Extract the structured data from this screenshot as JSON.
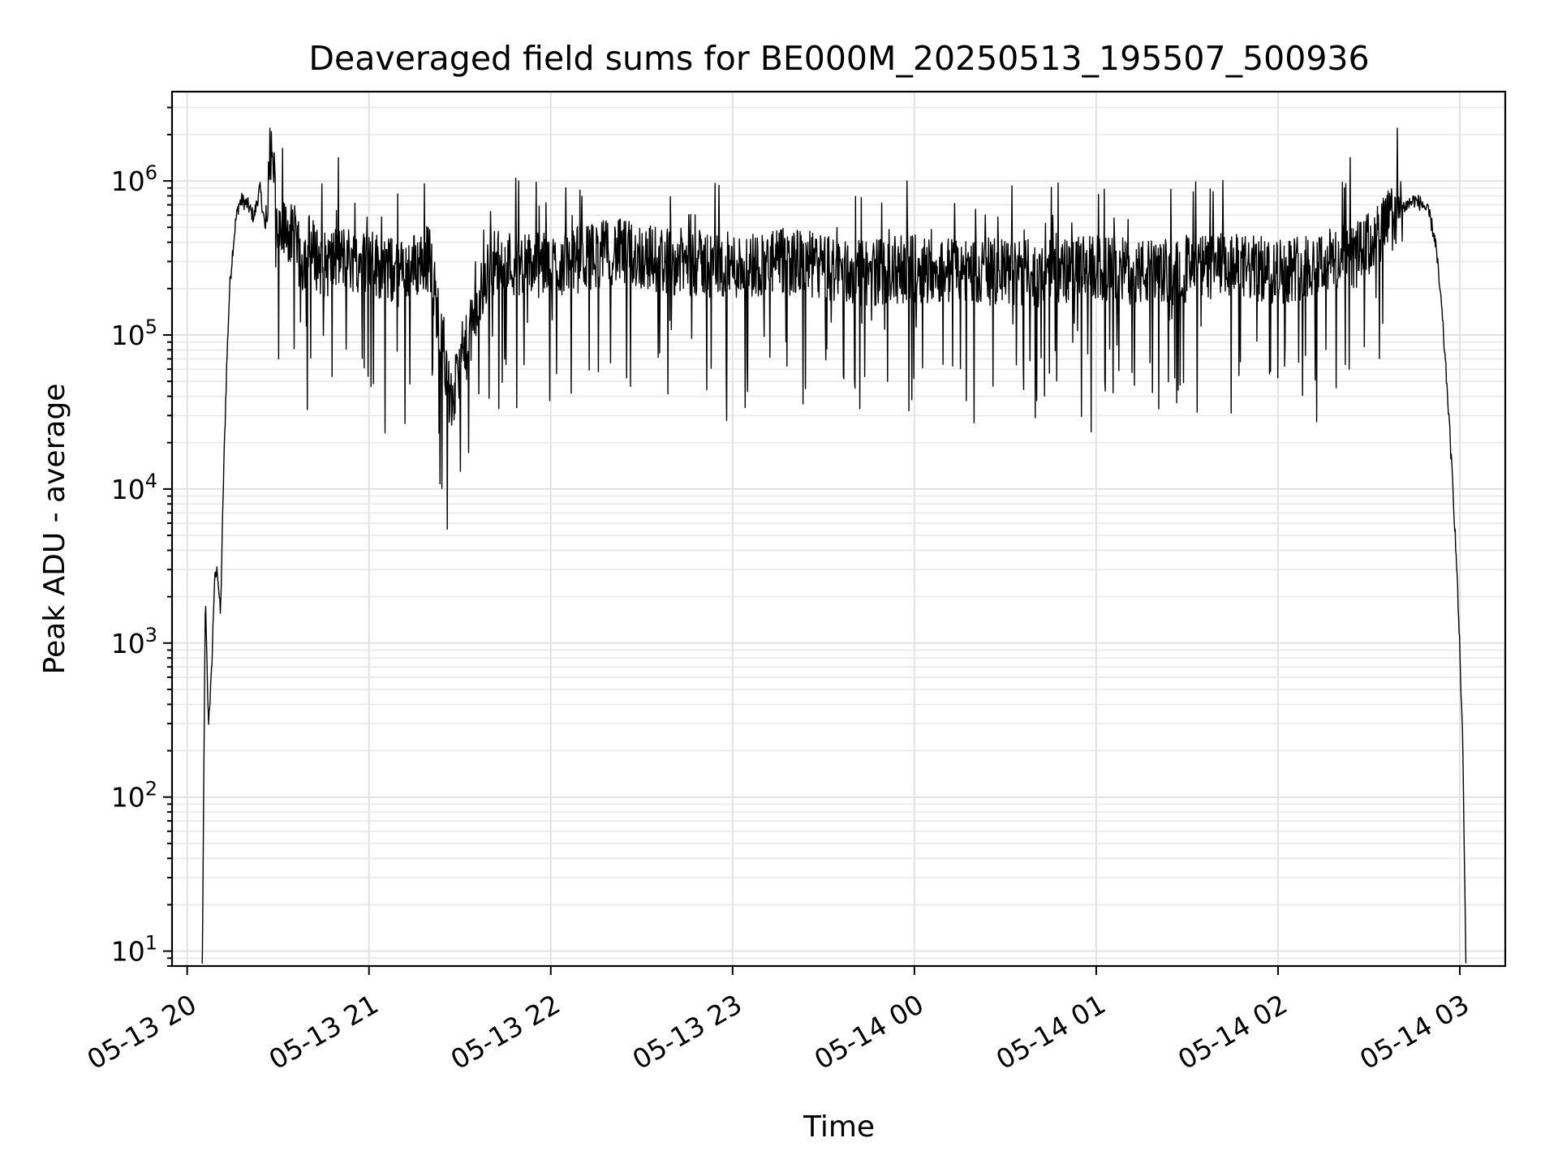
{
  "chart_data": {
    "type": "line",
    "title": "Deaveraged field sums for BE000M_20250513_195507_500936",
    "xlabel": "Time",
    "ylabel": "Peak ADU - average",
    "yscale": "log",
    "ylim": [
      8,
      3800000
    ],
    "xlim": [
      "2025-05-13 19:55",
      "2025-05-14 03:15"
    ],
    "grid": true,
    "x_ticks": [
      {
        "value": "2025-05-13 20:00",
        "label": "05-13 20"
      },
      {
        "value": "2025-05-13 21:00",
        "label": "05-13 21"
      },
      {
        "value": "2025-05-13 22:00",
        "label": "05-13 22"
      },
      {
        "value": "2025-05-13 23:00",
        "label": "05-13 23"
      },
      {
        "value": "2025-05-14 00:00",
        "label": "05-14 00"
      },
      {
        "value": "2025-05-14 01:00",
        "label": "05-14 01"
      },
      {
        "value": "2025-05-14 02:00",
        "label": "05-14 02"
      },
      {
        "value": "2025-05-14 03:00",
        "label": "05-14 03"
      }
    ],
    "y_ticks": [
      {
        "value": 10,
        "base": "10",
        "exp": "1"
      },
      {
        "value": 100,
        "base": "10",
        "exp": "2"
      },
      {
        "value": 1000,
        "base": "10",
        "exp": "3"
      },
      {
        "value": 10000,
        "base": "10",
        "exp": "4"
      },
      {
        "value": 100000,
        "base": "10",
        "exp": "5"
      },
      {
        "value": 1000000,
        "base": "10",
        "exp": "6"
      }
    ],
    "series": [
      {
        "color": "#000000",
        "x": [
          "2025-05-13 20:05",
          "2025-05-13 20:06",
          "2025-05-13 20:07",
          "2025-05-13 20:08",
          "2025-05-13 20:09",
          "2025-05-13 20:10",
          "2025-05-13 20:11",
          "2025-05-13 20:12",
          "2025-05-13 20:13",
          "2025-05-13 20:14",
          "2025-05-13 20:15",
          "2025-05-13 20:16",
          "2025-05-13 20:17",
          "2025-05-13 20:18",
          "2025-05-13 20:20",
          "2025-05-13 20:22",
          "2025-05-13 20:24",
          "2025-05-13 20:26",
          "2025-05-13 20:28",
          "2025-05-13 20:30",
          "2025-05-13 20:33",
          "2025-05-13 20:36",
          "2025-05-13 20:38",
          "2025-05-13 20:40",
          "2025-05-13 20:45",
          "2025-05-13 20:50",
          "2025-05-13 21:00",
          "2025-05-13 21:10",
          "2025-05-13 21:20",
          "2025-05-13 21:27",
          "2025-05-13 21:40",
          "2025-05-13 22:00",
          "2025-05-13 22:20",
          "2025-05-13 22:40",
          "2025-05-13 23:00",
          "2025-05-13 23:20",
          "2025-05-13 23:40",
          "2025-05-14 00:00",
          "2025-05-14 00:20",
          "2025-05-14 00:40",
          "2025-05-14 01:00",
          "2025-05-14 01:20",
          "2025-05-14 01:40",
          "2025-05-14 02:00",
          "2025-05-14 02:15",
          "2025-05-14 02:25",
          "2025-05-14 02:30",
          "2025-05-14 02:35",
          "2025-05-14 02:40",
          "2025-05-14 02:45",
          "2025-05-14 02:48",
          "2025-05-14 02:50",
          "2025-05-14 02:52",
          "2025-05-14 02:54",
          "2025-05-14 02:56",
          "2025-05-14 02:58",
          "2025-05-14 02:59",
          "2025-05-14 03:00",
          "2025-05-14 03:01",
          "2025-05-14 03:02"
        ],
        "values": [
          8,
          2000,
          300,
          600,
          2500,
          3000,
          1500,
          12000,
          60000,
          200000,
          350000,
          550000,
          700000,
          750000,
          700000,
          580000,
          900000,
          450000,
          2000000,
          400000,
          500000,
          350000,
          300000,
          380000,
          280000,
          320000,
          300000,
          250000,
          320000,
          35000,
          300000,
          280000,
          350000,
          300000,
          280000,
          300000,
          250000,
          270000,
          260000,
          250000,
          270000,
          250000,
          280000,
          260000,
          300000,
          320000,
          380000,
          500000,
          650000,
          750000,
          700000,
          600000,
          400000,
          150000,
          40000,
          8000,
          3000,
          900,
          200,
          8
        ]
      }
    ]
  }
}
